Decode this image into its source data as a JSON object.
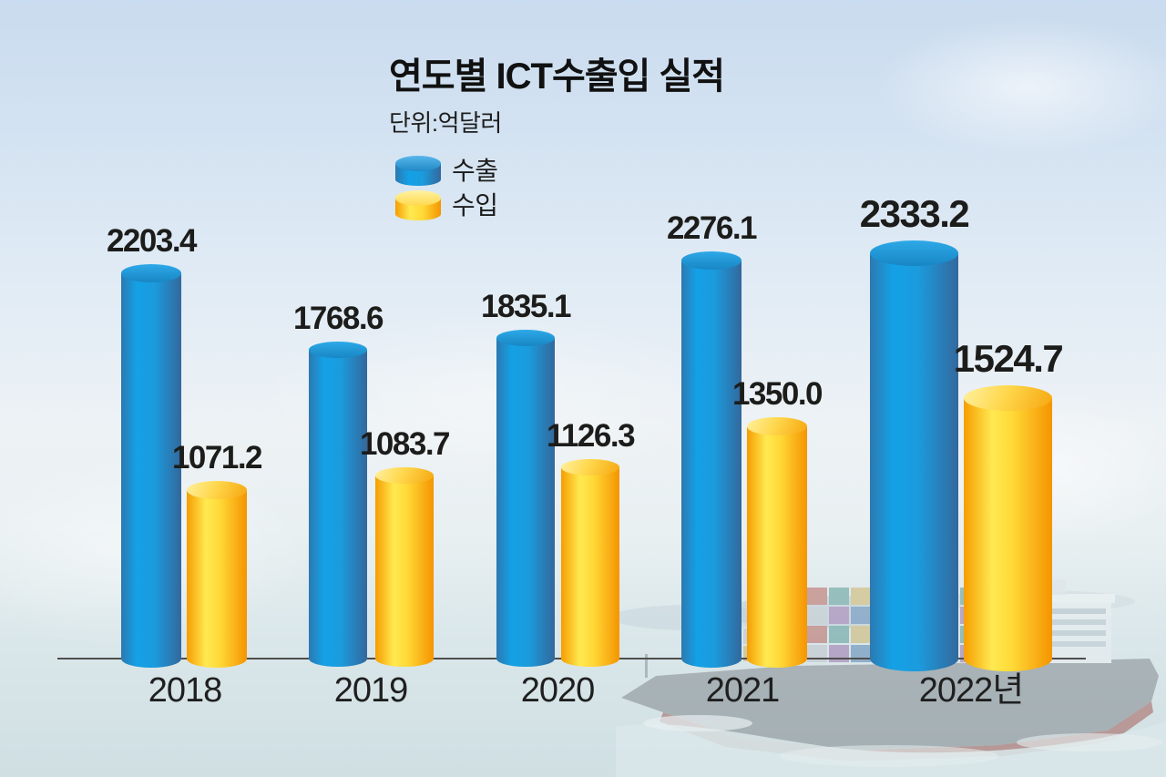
{
  "chart_data": {
    "type": "bar",
    "title": "연도별 ICT수출입 실적",
    "subtitle": "단위:억달러",
    "unit": "억달러",
    "categories": [
      "2018",
      "2019",
      "2020",
      "2021",
      "2022년"
    ],
    "series": [
      {
        "key": "export",
        "name": "수출",
        "color": "#149ee2",
        "values": [
          2203.4,
          1768.6,
          1835.1,
          2276.1,
          2333.2
        ],
        "labels": [
          "2203.4",
          "1768.6",
          "1835.1",
          "2276.1",
          "2333.2"
        ]
      },
      {
        "key": "import",
        "name": "수입",
        "color": "#ffd02e",
        "values": [
          1071.2,
          1083.7,
          1126.3,
          1350.0,
          1524.7
        ],
        "labels": [
          "1071.2",
          "1083.7",
          "1126.3",
          "1350.0",
          "1524.7"
        ]
      }
    ],
    "legend_position": "top-left",
    "grid": false,
    "ylim": [
      0,
      2400
    ],
    "highlighted_category": "2022년",
    "background_note": "hazy sea and sky photo with faded container ship at bottom right"
  }
}
